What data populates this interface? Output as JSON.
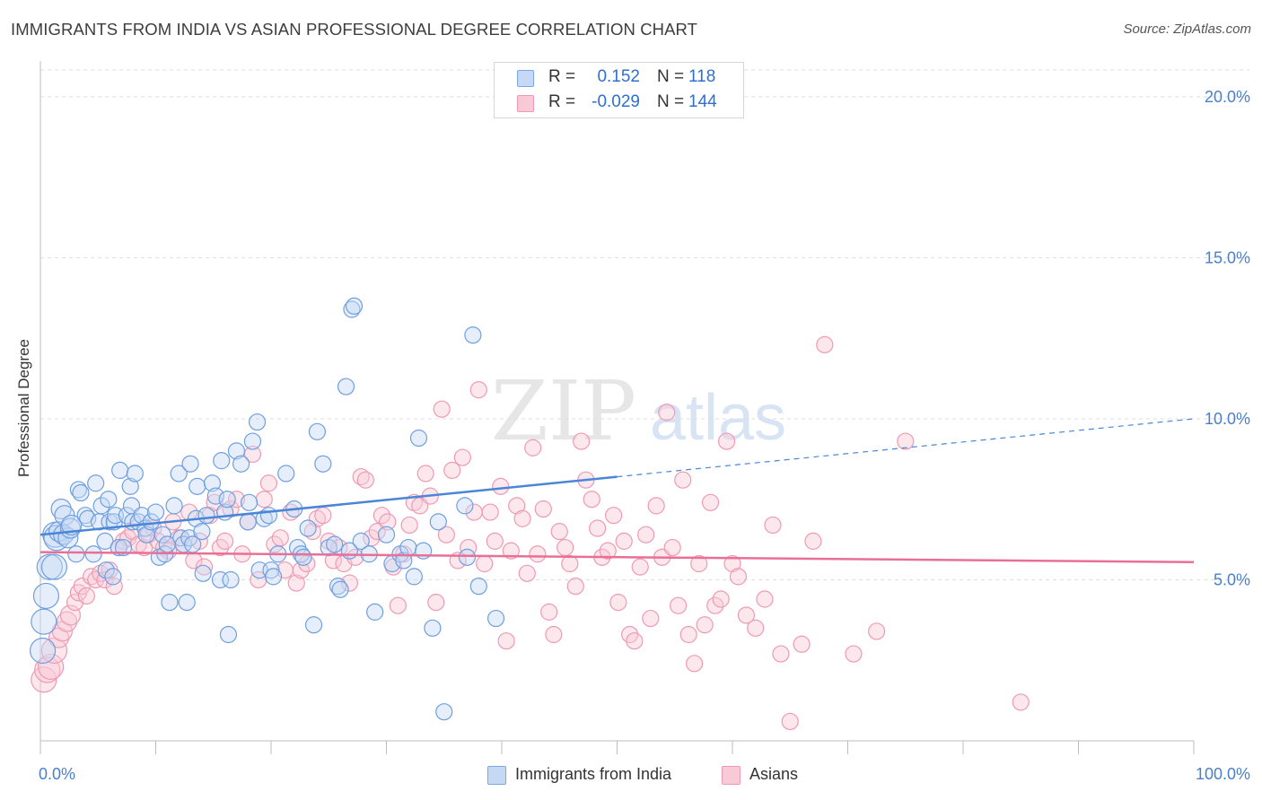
{
  "title": "IMMIGRANTS FROM INDIA VS ASIAN PROFESSIONAL DEGREE CORRELATION CHART",
  "source": "Source: ZipAtlas.com",
  "watermark": {
    "zip": "ZIP",
    "atlas": "atlas"
  },
  "legend": {
    "rows": [
      {
        "r_label": "R =",
        "r_value": "0.152",
        "n_label": "N =",
        "n_value": "118",
        "color": "#7aa7e8",
        "fill": "#c5d9f5"
      },
      {
        "r_label": "R =",
        "r_value": "-0.029",
        "n_label": "N =",
        "n_value": "144",
        "color": "#ef9ab5",
        "fill": "#f8cad8"
      }
    ]
  },
  "bottom_legend": {
    "items": [
      {
        "label": "Immigrants from India",
        "fill": "#c5d9f5",
        "border": "#7aa7e8"
      },
      {
        "label": "Asians",
        "fill": "#f8cad8",
        "border": "#ef9ab5"
      }
    ]
  },
  "chart_data": {
    "type": "scatter",
    "title": "IMMIGRANTS FROM INDIA VS ASIAN PROFESSIONAL DEGREE CORRELATION CHART",
    "xlabel": "",
    "ylabel": "Professional Degree",
    "xlim": [
      0,
      100
    ],
    "ylim": [
      0,
      21
    ],
    "x_tick_labels": [
      "0.0%",
      "100.0%"
    ],
    "y_ticks": [
      5,
      10,
      15,
      20
    ],
    "y_tick_labels": [
      "5.0%",
      "10.0%",
      "15.0%",
      "20.0%"
    ],
    "grid": "horizontal dashed",
    "legend_position": "top-center",
    "colors": {
      "blue": "#4a86d8",
      "blue_fill": "#c5d9f5",
      "pink": "#ea6f97",
      "pink_fill": "#f8cad8",
      "axis_text": "#4a7fcb"
    },
    "series": [
      {
        "name": "Immigrants from India",
        "r": 0.152,
        "n": 118,
        "trend": {
          "solid": [
            [
              0,
              6.4
            ],
            [
              50,
              8.2
            ]
          ],
          "dashed": [
            [
              50,
              8.2
            ],
            [
              100,
              10.0
            ]
          ]
        },
        "points": [
          [
            0.2,
            2.8
          ],
          [
            0.3,
            3.7
          ],
          [
            0.5,
            4.5
          ],
          [
            0.8,
            5.4
          ],
          [
            1.2,
            5.4
          ],
          [
            1.3,
            6.4
          ],
          [
            1.4,
            6.3
          ],
          [
            1.6,
            6.5
          ],
          [
            1.8,
            7.2
          ],
          [
            2.0,
            6.4
          ],
          [
            2.1,
            7.0
          ],
          [
            2.4,
            6.3
          ],
          [
            2.6,
            6.6
          ],
          [
            2.7,
            6.7
          ],
          [
            3.1,
            5.8
          ],
          [
            3.3,
            7.8
          ],
          [
            3.5,
            7.7
          ],
          [
            3.9,
            7.0
          ],
          [
            4.1,
            6.9
          ],
          [
            4.6,
            5.8
          ],
          [
            4.8,
            8.0
          ],
          [
            5.1,
            6.8
          ],
          [
            5.3,
            7.3
          ],
          [
            5.6,
            6.2
          ],
          [
            5.7,
            5.3
          ],
          [
            5.9,
            7.5
          ],
          [
            6.0,
            6.8
          ],
          [
            6.3,
            5.1
          ],
          [
            6.4,
            6.8
          ],
          [
            6.5,
            7.0
          ],
          [
            6.8,
            6.0
          ],
          [
            6.9,
            8.4
          ],
          [
            7.2,
            6.0
          ],
          [
            7.5,
            7.0
          ],
          [
            7.8,
            7.9
          ],
          [
            7.9,
            7.3
          ],
          [
            8.0,
            6.8
          ],
          [
            8.2,
            8.3
          ],
          [
            8.5,
            6.8
          ],
          [
            8.8,
            7.0
          ],
          [
            9.1,
            6.6
          ],
          [
            9.2,
            6.4
          ],
          [
            9.6,
            6.8
          ],
          [
            10.0,
            7.1
          ],
          [
            10.3,
            5.7
          ],
          [
            10.6,
            6.4
          ],
          [
            10.8,
            5.8
          ],
          [
            11.0,
            6.1
          ],
          [
            11.2,
            4.3
          ],
          [
            11.6,
            7.3
          ],
          [
            12.0,
            8.3
          ],
          [
            12.2,
            6.3
          ],
          [
            12.4,
            6.1
          ],
          [
            12.7,
            4.3
          ],
          [
            12.9,
            6.3
          ],
          [
            13.0,
            8.6
          ],
          [
            13.2,
            6.1
          ],
          [
            13.5,
            6.9
          ],
          [
            13.6,
            7.9
          ],
          [
            14.0,
            6.5
          ],
          [
            14.1,
            5.2
          ],
          [
            14.4,
            7.0
          ],
          [
            14.9,
            8.0
          ],
          [
            15.2,
            7.6
          ],
          [
            15.6,
            5.0
          ],
          [
            15.7,
            8.7
          ],
          [
            16.0,
            7.1
          ],
          [
            16.2,
            7.5
          ],
          [
            16.3,
            3.3
          ],
          [
            16.5,
            5.0
          ],
          [
            17.0,
            9.0
          ],
          [
            17.4,
            8.6
          ],
          [
            18.0,
            6.8
          ],
          [
            18.1,
            7.4
          ],
          [
            18.4,
            9.3
          ],
          [
            18.8,
            9.9
          ],
          [
            19.0,
            5.3
          ],
          [
            19.4,
            6.9
          ],
          [
            19.8,
            7.0
          ],
          [
            20.0,
            5.3
          ],
          [
            20.2,
            5.1
          ],
          [
            20.6,
            5.8
          ],
          [
            21.3,
            8.3
          ],
          [
            22.0,
            7.2
          ],
          [
            22.3,
            6.0
          ],
          [
            22.6,
            5.8
          ],
          [
            22.8,
            5.7
          ],
          [
            23.2,
            6.6
          ],
          [
            23.7,
            3.6
          ],
          [
            24.0,
            9.6
          ],
          [
            24.5,
            8.6
          ],
          [
            25.0,
            6.0
          ],
          [
            25.5,
            6.1
          ],
          [
            25.8,
            4.8
          ],
          [
            26.0,
            4.7
          ],
          [
            26.5,
            11.0
          ],
          [
            26.8,
            5.9
          ],
          [
            27.0,
            13.4
          ],
          [
            27.2,
            13.5
          ],
          [
            27.8,
            6.2
          ],
          [
            28.5,
            5.8
          ],
          [
            29.0,
            4.0
          ],
          [
            30.0,
            6.4
          ],
          [
            30.5,
            5.5
          ],
          [
            31.2,
            5.8
          ],
          [
            31.5,
            5.6
          ],
          [
            31.9,
            6.0
          ],
          [
            32.4,
            5.1
          ],
          [
            32.8,
            9.4
          ],
          [
            33.2,
            5.9
          ],
          [
            34.0,
            3.5
          ],
          [
            34.5,
            6.8
          ],
          [
            35.0,
            0.9
          ],
          [
            36.8,
            7.3
          ],
          [
            37.0,
            5.7
          ],
          [
            37.5,
            12.6
          ],
          [
            38.0,
            4.8
          ],
          [
            39.5,
            3.8
          ]
        ]
      },
      {
        "name": "Asians",
        "r": -0.029,
        "n": 144,
        "trend": {
          "solid": [
            [
              0,
              5.86
            ],
            [
              100,
              5.55
            ]
          ]
        },
        "points": [
          [
            0.3,
            1.9
          ],
          [
            0.6,
            2.2
          ],
          [
            0.9,
            2.3
          ],
          [
            1.2,
            2.8
          ],
          [
            1.6,
            3.2
          ],
          [
            1.9,
            3.4
          ],
          [
            2.3,
            3.7
          ],
          [
            2.6,
            3.9
          ],
          [
            3.0,
            4.3
          ],
          [
            3.3,
            4.6
          ],
          [
            3.6,
            4.8
          ],
          [
            4.0,
            4.5
          ],
          [
            4.4,
            5.1
          ],
          [
            4.8,
            5.0
          ],
          [
            5.2,
            5.2
          ],
          [
            5.6,
            5.0
          ],
          [
            6.0,
            5.3
          ],
          [
            6.4,
            4.8
          ],
          [
            6.8,
            6.0
          ],
          [
            7.2,
            6.2
          ],
          [
            7.6,
            6.3
          ],
          [
            8.0,
            6.5
          ],
          [
            8.5,
            6.1
          ],
          [
            9.0,
            6.0
          ],
          [
            9.4,
            6.4
          ],
          [
            9.8,
            6.6
          ],
          [
            10.2,
            6.2
          ],
          [
            10.7,
            6.0
          ],
          [
            11.1,
            5.9
          ],
          [
            11.5,
            6.8
          ],
          [
            12.0,
            6.3
          ],
          [
            12.4,
            6.1
          ],
          [
            12.9,
            7.1
          ],
          [
            13.3,
            5.6
          ],
          [
            13.8,
            6.2
          ],
          [
            14.2,
            5.4
          ],
          [
            14.7,
            7.0
          ],
          [
            15.1,
            7.4
          ],
          [
            15.6,
            6.0
          ],
          [
            16.0,
            6.2
          ],
          [
            16.5,
            7.2
          ],
          [
            17.0,
            7.5
          ],
          [
            17.5,
            5.8
          ],
          [
            18.0,
            6.8
          ],
          [
            18.4,
            8.9
          ],
          [
            18.9,
            5.0
          ],
          [
            19.4,
            7.5
          ],
          [
            19.8,
            8.0
          ],
          [
            20.3,
            6.1
          ],
          [
            20.8,
            6.3
          ],
          [
            21.2,
            5.3
          ],
          [
            21.7,
            7.1
          ],
          [
            22.2,
            4.9
          ],
          [
            22.6,
            5.3
          ],
          [
            23.1,
            5.5
          ],
          [
            23.6,
            6.5
          ],
          [
            24.0,
            6.9
          ],
          [
            24.5,
            7.0
          ],
          [
            25.0,
            6.2
          ],
          [
            25.4,
            5.6
          ],
          [
            25.9,
            6.0
          ],
          [
            26.3,
            5.5
          ],
          [
            26.8,
            4.9
          ],
          [
            27.3,
            5.7
          ],
          [
            27.8,
            8.2
          ],
          [
            28.2,
            8.1
          ],
          [
            28.7,
            6.3
          ],
          [
            29.2,
            6.5
          ],
          [
            29.6,
            7.0
          ],
          [
            30.1,
            6.8
          ],
          [
            30.6,
            5.4
          ],
          [
            31.0,
            4.2
          ],
          [
            31.5,
            5.8
          ],
          [
            32.0,
            6.7
          ],
          [
            32.4,
            7.4
          ],
          [
            32.9,
            7.3
          ],
          [
            33.4,
            8.3
          ],
          [
            33.8,
            7.6
          ],
          [
            34.3,
            4.3
          ],
          [
            34.8,
            10.3
          ],
          [
            35.2,
            6.4
          ],
          [
            35.7,
            8.4
          ],
          [
            36.2,
            5.6
          ],
          [
            36.6,
            8.8
          ],
          [
            37.1,
            6.0
          ],
          [
            37.6,
            7.1
          ],
          [
            38.0,
            10.9
          ],
          [
            38.5,
            5.5
          ],
          [
            39.0,
            7.1
          ],
          [
            39.4,
            6.2
          ],
          [
            39.9,
            7.9
          ],
          [
            40.4,
            3.1
          ],
          [
            40.8,
            5.9
          ],
          [
            41.3,
            7.3
          ],
          [
            41.8,
            6.9
          ],
          [
            42.2,
            5.2
          ],
          [
            42.7,
            9.1
          ],
          [
            43.1,
            5.8
          ],
          [
            43.6,
            7.2
          ],
          [
            44.1,
            4.0
          ],
          [
            44.5,
            3.3
          ],
          [
            45.0,
            6.5
          ],
          [
            45.5,
            6.0
          ],
          [
            45.9,
            5.5
          ],
          [
            46.4,
            4.8
          ],
          [
            46.9,
            9.3
          ],
          [
            47.3,
            8.1
          ],
          [
            47.8,
            7.5
          ],
          [
            48.3,
            6.6
          ],
          [
            48.7,
            5.7
          ],
          [
            49.2,
            5.9
          ],
          [
            49.7,
            7.0
          ],
          [
            50.1,
            4.3
          ],
          [
            50.6,
            6.2
          ],
          [
            51.1,
            3.3
          ],
          [
            51.5,
            3.1
          ],
          [
            52.0,
            5.4
          ],
          [
            52.5,
            6.4
          ],
          [
            52.9,
            3.8
          ],
          [
            53.4,
            7.3
          ],
          [
            53.9,
            5.7
          ],
          [
            54.3,
            10.2
          ],
          [
            54.8,
            6.0
          ],
          [
            55.3,
            4.2
          ],
          [
            55.7,
            8.1
          ],
          [
            56.2,
            3.3
          ],
          [
            56.7,
            2.4
          ],
          [
            57.1,
            5.5
          ],
          [
            57.6,
            3.6
          ],
          [
            58.1,
            7.4
          ],
          [
            58.5,
            4.2
          ],
          [
            59.0,
            4.4
          ],
          [
            59.5,
            9.3
          ],
          [
            60.0,
            5.5
          ],
          [
            60.5,
            5.1
          ],
          [
            61.2,
            3.9
          ],
          [
            62.0,
            3.5
          ],
          [
            62.8,
            4.4
          ],
          [
            63.5,
            6.7
          ],
          [
            64.2,
            2.7
          ],
          [
            65.0,
            0.6
          ],
          [
            66.0,
            3.0
          ],
          [
            67.0,
            6.2
          ],
          [
            68.0,
            12.3
          ],
          [
            70.5,
            2.7
          ],
          [
            72.5,
            3.4
          ],
          [
            75.0,
            9.3
          ],
          [
            85.0,
            1.2
          ]
        ]
      }
    ]
  }
}
